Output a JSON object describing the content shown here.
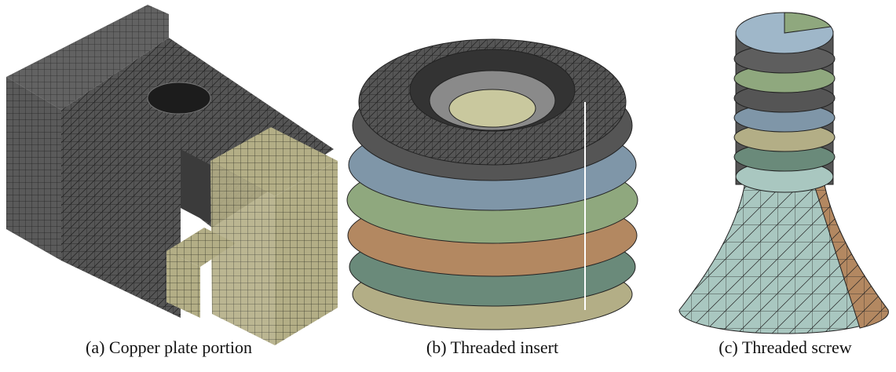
{
  "figure": {
    "panels": [
      {
        "caption": "(a) Copper plate portion"
      },
      {
        "caption": "(b) Threaded insert"
      },
      {
        "caption": "(c) Threaded screw"
      }
    ]
  }
}
